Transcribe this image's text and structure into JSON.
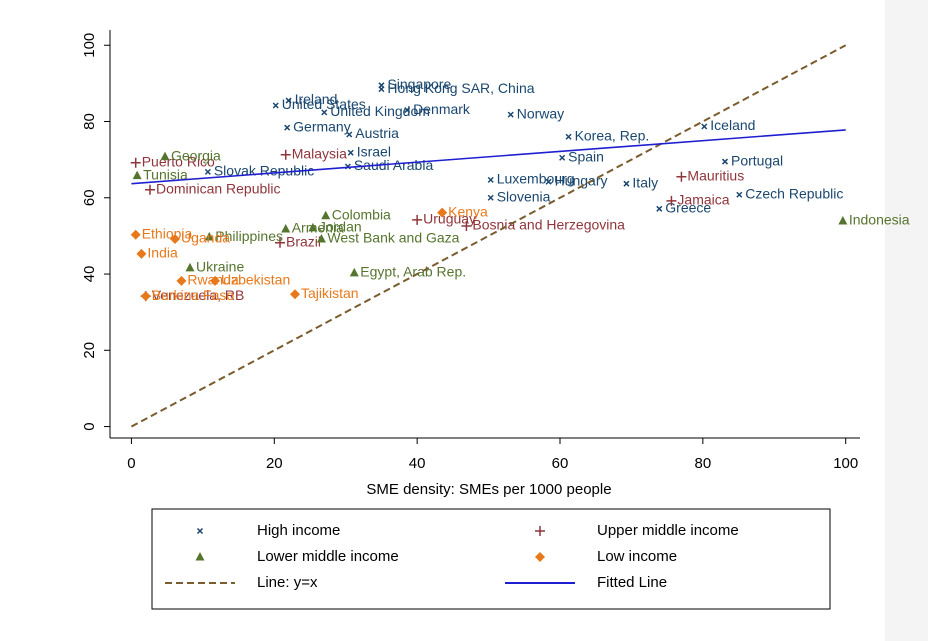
{
  "chart_data": {
    "type": "scatter",
    "x_label": "SME density: SMEs per 1000 people",
    "xlim": [
      -3,
      102
    ],
    "ylim": [
      -3,
      104
    ],
    "xticks": [
      0,
      20,
      40,
      60,
      80,
      100
    ],
    "yticks": [
      0,
      20,
      40,
      60,
      80,
      100
    ],
    "series": [
      {
        "name": "High income",
        "color": "#1a476f",
        "marker": "x",
        "x": [
          35,
          35,
          22,
          20.2,
          27,
          38.6,
          53.1,
          21.8,
          30.5,
          61.2,
          80.2,
          83.1,
          60.3,
          85.1,
          73.9,
          69.3,
          58.4,
          50.3,
          10.7,
          30.7,
          30.3,
          50.3
        ],
        "values": [
          89.5,
          88.5,
          85.5,
          84.2,
          82.4,
          83,
          81.8,
          78.4,
          76.6,
          76,
          78.7,
          69.5,
          70.5,
          60.8,
          57.1,
          63.7,
          64.2,
          64.7,
          66.8,
          71.8,
          68.2,
          60
        ],
        "labels": [
          "Singapore",
          "Hong Kong SAR, China",
          "Ireland",
          "United States",
          "United Kingdom",
          "Denmark",
          "Norway",
          "Germany",
          "Austria",
          "Korea, Rep.",
          "Iceland",
          "Portugal",
          "Spain",
          "Czech Republic",
          "Greece",
          "Italy",
          "Hungary",
          "Luxembourg",
          "Slovak Republic",
          "Israel",
          "Saudi Arabia",
          "Slovenia"
        ]
      },
      {
        "name": "Upper middle income",
        "color": "#90353b",
        "marker": "plus",
        "x": [
          0.6,
          2.6,
          21.6,
          77,
          75.6,
          20.8,
          46.9,
          2.0,
          40
        ],
        "values": [
          69.2,
          62.1,
          71.3,
          65.5,
          59.2,
          48.2,
          52.6,
          34.2,
          54.2
        ],
        "labels": [
          "Puerto Rico",
          "Dominican Republic",
          "Malaysia",
          "Mauritius",
          "Jamaica",
          "Brazil",
          "Bosnia and Herzegovina",
          "Venezuela, RB",
          "Uruguay"
        ]
      },
      {
        "name": "Lower middle income",
        "color": "#55752f",
        "marker": "triangle",
        "x": [
          4.7,
          0.8,
          8.2,
          31.2,
          26.6,
          99.6,
          25.4,
          27.2,
          10.9,
          21.6
        ],
        "values": [
          70.8,
          65.8,
          41.6,
          40.3,
          49.2,
          53.9,
          52.1,
          55.3,
          49.7,
          51.8
        ],
        "labels": [
          "Georgia",
          "Tunisia",
          "Ukraine",
          "Egypt, Arab Rep.",
          "West Bank and Gaza",
          "Indonesia",
          "Jordan",
          "Colombia",
          "Philippines",
          "Armenia"
        ]
      },
      {
        "name": "Low income",
        "color": "#e8791b",
        "marker": "diamond",
        "x": [
          43.5,
          1.4,
          6.1,
          7.0,
          11.7,
          22.9,
          2.0,
          0.6
        ],
        "values": [
          56.1,
          45.3,
          49.2,
          38.2,
          38.2,
          34.7,
          34.2,
          50.3
        ],
        "labels": [
          "Kenya",
          "India",
          "Uganda",
          "Rwanda",
          "Uzbekistan",
          "Tajikistan",
          "Burkina Faso",
          "Ethiopia"
        ]
      },
      {
        "name": "Line: y=x",
        "color": "#7a5c2e",
        "marker": "dashed-line",
        "x": [
          0,
          100
        ],
        "values": [
          0,
          100
        ]
      },
      {
        "name": "Fitted Line",
        "color": "#1f1fd1",
        "marker": "solid-line",
        "x": [
          0,
          100
        ],
        "values": [
          63.7,
          77.8
        ]
      }
    ]
  }
}
